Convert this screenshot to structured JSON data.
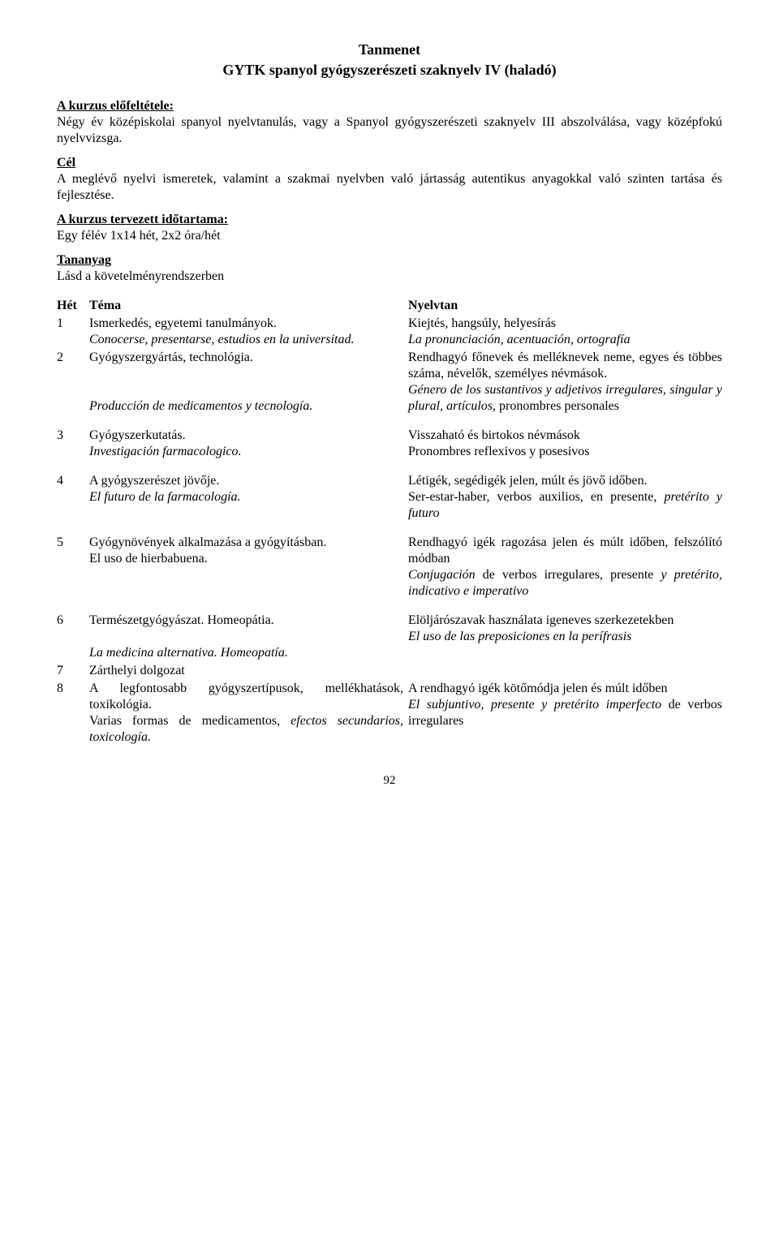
{
  "title": "Tanmenet",
  "subtitle": "GYTK spanyol gyógyszerészeti szaknyelv IV (haladó)",
  "prereq_heading": "A kurzus előfeltétele:",
  "prereq_text": "Négy év középiskolai spanyol nyelvtanulás, vagy a Spanyol gyógyszerészeti szaknyelv III abszolválása, vagy középfokú nyelvvizsga.",
  "goal_heading": "Cél",
  "goal_text": "A meglévő nyelvi ismeretek, valamint a szakmai nyelvben való jártasság autentikus anyagokkal való szinten tartása és fejlesztése.",
  "duration_heading": "A kurzus tervezett időtartama:",
  "duration_text": "Egy félév 1x14 hét, 2x2 óra/hét",
  "material_heading": "Tananyag",
  "material_text": "Lásd a követelményrendszerben",
  "headers": {
    "week": "Hét",
    "topic": "Téma",
    "grammar": "Nyelvtan"
  },
  "rows": {
    "r1": {
      "wk": "1",
      "topic_hu": "Ismerkedés, egyetemi tanulmányok.",
      "topic_es": "Conocerse, presentarse, estudios en la universitad.",
      "gram_hu": "Kiejtés, hangsúly, helyesírás",
      "gram_es": "La pronunciación, acentuación, ortografía"
    },
    "r2": {
      "wk": "2",
      "topic_hu": "Gyógyszergyártás, technológia.",
      "topic_es": "Producción de medicamentos y tecnología.",
      "gram_hu": "Rendhagyó főnevek és melléknevek neme, egyes és többes száma, névelők, személyes névmások.",
      "gram_es_a": "Género de los sustantivos y adjetivos irregulares, singular y plural, artículos,",
      "gram_es_b": " pronombres personales"
    },
    "r3": {
      "wk": "3",
      "topic_hu": "Gyógyszerkutatás.",
      "topic_es": "Investigación farmacologico.",
      "gram_hu": "Visszaható és birtokos névmások",
      "gram_es": "Pronombres reflexivos y posesivos"
    },
    "r4": {
      "wk": "4",
      "topic_hu": "A gyógyszerészet jövője.",
      "topic_es": "El futuro de la farmacología.",
      "gram_hu": "Létigék, segédigék jelen, múlt és jövő időben.",
      "gram_es_a": "Ser-estar-haber, verbos auxilios, en presente, ",
      "gram_es_b": "pretérito y futuro"
    },
    "r5": {
      "wk": "5",
      "topic_hu_a": "Gyógynövények alkalmazása a gyógyításban.",
      "topic_hu_b": "El uso de hierbabuena.",
      "gram_hu": "Rendhagyó igék ragozása jelen és múlt időben, felszólító módban",
      "gram_es_a": "Conjugación",
      "gram_es_b": " de verbos irregulares, presente ",
      "gram_es_c": "y pretérito, indicativo e imperativo"
    },
    "r6": {
      "wk": "6",
      "topic_hu": "Természetgyógyászat. Homeopátia.",
      "topic_es": "La medicina alternativa. Homeopatía.",
      "gram_hu": "Elöljárószavak használata igeneves szerkezetekben",
      "gram_es": "El uso de las preposiciones en la perífrasis"
    },
    "r7": {
      "wk": "7",
      "topic_hu": "Zárthelyi dolgozat"
    },
    "r8": {
      "wk": "8",
      "topic_hu_a": "A legfontosabb gyógyszertípusok, mellékhatások, toxikológia.",
      "topic_hu_b": "Varias formas de medicamentos, ",
      "topic_es": "efectos secundarios, toxicología.",
      "gram_hu": "A rendhagyó igék kötőmódja jelen és múlt időben",
      "gram_es_a": "El subjuntivo, presente y pretérito imperfecto",
      "gram_es_b": " de verbos irregulares"
    }
  },
  "page_number": "92"
}
